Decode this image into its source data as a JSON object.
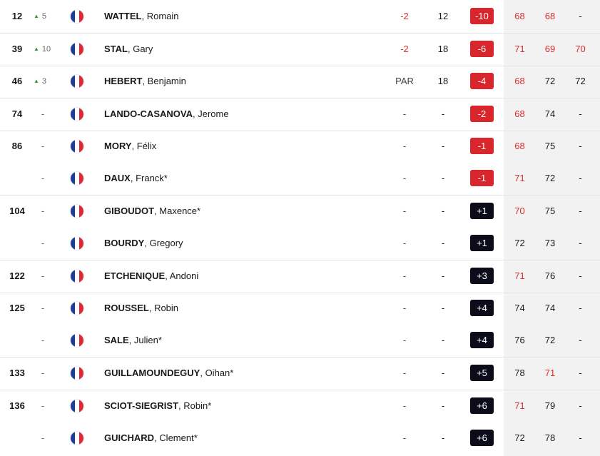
{
  "colors": {
    "under_par_badge": "#d9262c",
    "over_par_badge": "#0b0b1a",
    "red_score": "#d62e2e",
    "move_up_arrow": "#2e9b3a",
    "rounds_column_bg": "#f2f2f2"
  },
  "icons": {
    "flag": "france-flag-icon",
    "move_up": "triangle-up-icon"
  },
  "rows": [
    {
      "pos": "12",
      "move": "5",
      "up": true,
      "last": "WATTEL",
      "first": ", Romain",
      "today": "-2",
      "today_red": true,
      "thru": "12",
      "total": "-10",
      "under": true,
      "r1": "68",
      "r1_red": true,
      "r2": "68",
      "r2_red": true,
      "r3": "-",
      "r3_red": false,
      "sep": true
    },
    {
      "pos": "39",
      "move": "10",
      "up": true,
      "last": "STAL",
      "first": ", Gary",
      "today": "-2",
      "today_red": true,
      "thru": "18",
      "total": "-6",
      "under": true,
      "r1": "71",
      "r1_red": true,
      "r2": "69",
      "r2_red": true,
      "r3": "70",
      "r3_red": true,
      "sep": true
    },
    {
      "pos": "46",
      "move": "3",
      "up": true,
      "last": "HEBERT",
      "first": ", Benjamin",
      "today": "PAR",
      "today_red": false,
      "thru": "18",
      "total": "-4",
      "under": true,
      "r1": "68",
      "r1_red": true,
      "r2": "72",
      "r2_red": false,
      "r3": "72",
      "r3_red": false,
      "sep": true
    },
    {
      "pos": "74",
      "move": "-",
      "up": false,
      "last": "LANDO-CASANOVA",
      "first": ", Jerome",
      "today": "-",
      "today_red": false,
      "thru": "-",
      "total": "-2",
      "under": true,
      "r1": "68",
      "r1_red": true,
      "r2": "74",
      "r2_red": false,
      "r3": "-",
      "r3_red": false,
      "sep": true
    },
    {
      "pos": "86",
      "move": "-",
      "up": false,
      "last": "MORY",
      "first": ", Félix",
      "today": "-",
      "today_red": false,
      "thru": "-",
      "total": "-1",
      "under": true,
      "r1": "68",
      "r1_red": true,
      "r2": "75",
      "r2_red": false,
      "r3": "-",
      "r3_red": false,
      "sep": false
    },
    {
      "pos": "",
      "move": "-",
      "up": false,
      "last": "DAUX",
      "first": ", Franck*",
      "today": "-",
      "today_red": false,
      "thru": "-",
      "total": "-1",
      "under": true,
      "r1": "71",
      "r1_red": true,
      "r2": "72",
      "r2_red": false,
      "r3": "-",
      "r3_red": false,
      "sep": true
    },
    {
      "pos": "104",
      "move": "-",
      "up": false,
      "last": "GIBOUDOT",
      "first": ", Maxence*",
      "today": "-",
      "today_red": false,
      "thru": "-",
      "total": "+1",
      "under": false,
      "r1": "70",
      "r1_red": true,
      "r2": "75",
      "r2_red": false,
      "r3": "-",
      "r3_red": false,
      "sep": false
    },
    {
      "pos": "",
      "move": "-",
      "up": false,
      "last": "BOURDY",
      "first": ", Gregory",
      "today": "-",
      "today_red": false,
      "thru": "-",
      "total": "+1",
      "under": false,
      "r1": "72",
      "r1_red": false,
      "r2": "73",
      "r2_red": false,
      "r3": "-",
      "r3_red": false,
      "sep": true
    },
    {
      "pos": "122",
      "move": "-",
      "up": false,
      "last": "ETCHENIQUE",
      "first": ", Andoni",
      "today": "-",
      "today_red": false,
      "thru": "-",
      "total": "+3",
      "under": false,
      "r1": "71",
      "r1_red": true,
      "r2": "76",
      "r2_red": false,
      "r3": "-",
      "r3_red": false,
      "sep": true
    },
    {
      "pos": "125",
      "move": "-",
      "up": false,
      "last": "ROUSSEL",
      "first": ", Robin",
      "today": "-",
      "today_red": false,
      "thru": "-",
      "total": "+4",
      "under": false,
      "r1": "74",
      "r1_red": false,
      "r2": "74",
      "r2_red": false,
      "r3": "-",
      "r3_red": false,
      "sep": false
    },
    {
      "pos": "",
      "move": "-",
      "up": false,
      "last": "SALE",
      "first": ", Julien*",
      "today": "-",
      "today_red": false,
      "thru": "-",
      "total": "+4",
      "under": false,
      "r1": "76",
      "r1_red": false,
      "r2": "72",
      "r2_red": false,
      "r3": "-",
      "r3_red": false,
      "sep": true
    },
    {
      "pos": "133",
      "move": "-",
      "up": false,
      "last": "GUILLAMOUNDEGUY",
      "first": ", Oihan*",
      "today": "-",
      "today_red": false,
      "thru": "-",
      "total": "+5",
      "under": false,
      "r1": "78",
      "r1_red": false,
      "r2": "71",
      "r2_red": true,
      "r3": "-",
      "r3_red": false,
      "sep": true
    },
    {
      "pos": "136",
      "move": "-",
      "up": false,
      "last": "SCIOT-SIEGRIST",
      "first": ", Robin*",
      "today": "-",
      "today_red": false,
      "thru": "-",
      "total": "+6",
      "under": false,
      "r1": "71",
      "r1_red": true,
      "r2": "79",
      "r2_red": false,
      "r3": "-",
      "r3_red": false,
      "sep": false
    },
    {
      "pos": "",
      "move": "-",
      "up": false,
      "last": "GUICHARD",
      "first": ", Clement*",
      "today": "-",
      "today_red": false,
      "thru": "-",
      "total": "+6",
      "under": false,
      "r1": "72",
      "r1_red": false,
      "r2": "78",
      "r2_red": false,
      "r3": "-",
      "r3_red": false,
      "sep": false
    }
  ]
}
